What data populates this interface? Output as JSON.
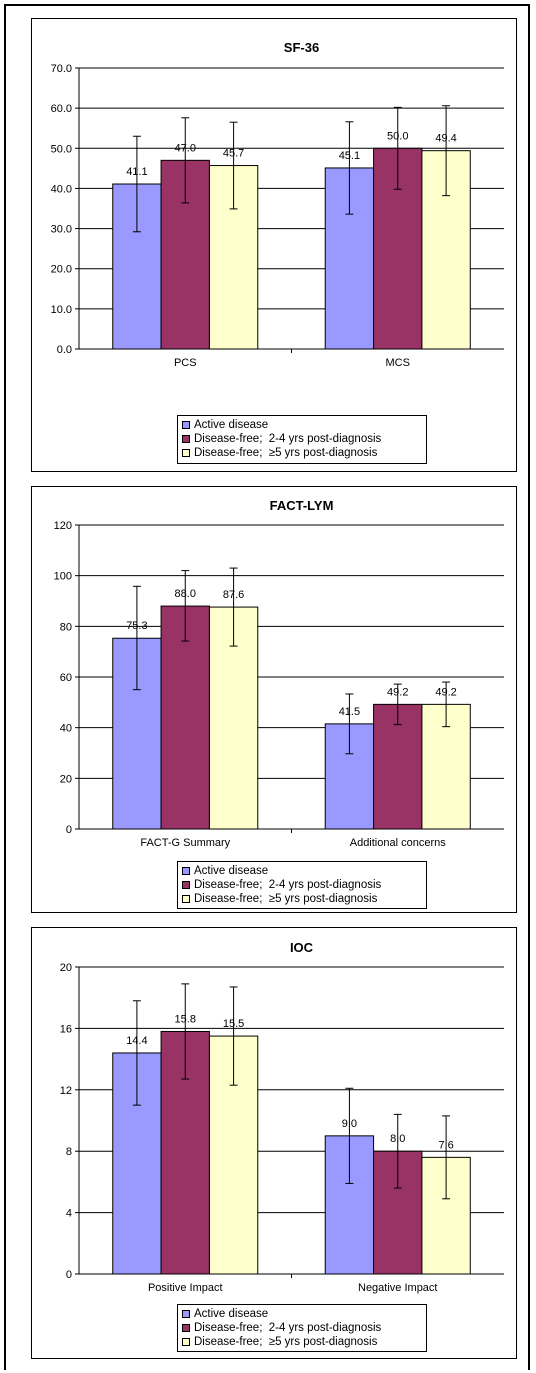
{
  "colors": {
    "active": "#9999ff",
    "free24": "#993366",
    "free5": "#ffffcc"
  },
  "legend": [
    {
      "label": "Active disease",
      "color": "#9999ff"
    },
    {
      "label": "Disease-free;  2-4 yrs post-diagnosis",
      "color": "#993366"
    },
    {
      "label": "Disease-free;  ≥5 yrs post-diagnosis",
      "color": "#ffffcc"
    }
  ],
  "chart_data": [
    {
      "type": "bar",
      "title": "SF-36",
      "categories": [
        "PCS",
        "MCS"
      ],
      "ylim": [
        0,
        70
      ],
      "yticks": [
        0,
        10,
        20,
        30,
        40,
        50,
        60,
        70
      ],
      "tick_decimals": 1,
      "series": [
        {
          "name": "Active disease",
          "values": [
            41.1,
            45.1
          ],
          "errors_low": [
            29.2,
            33.6
          ],
          "errors_high": [
            53.0,
            56.6
          ],
          "labels": [
            "41.1",
            "45.1"
          ]
        },
        {
          "name": "Disease-free;  2-4 yrs post-diagnosis",
          "values": [
            47.0,
            50.0
          ],
          "errors_low": [
            36.4,
            39.8
          ],
          "errors_high": [
            57.6,
            60.2
          ],
          "labels": [
            "47.0",
            "50.0"
          ]
        },
        {
          "name": "Disease-free;  ≥5 yrs post-diagnosis",
          "values": [
            45.7,
            49.4
          ],
          "errors_low": [
            34.9,
            38.2
          ],
          "errors_high": [
            56.5,
            60.6
          ],
          "labels": [
            "45.7",
            "49.4"
          ]
        }
      ],
      "grid": true,
      "legend_position": "bottom"
    },
    {
      "type": "bar",
      "title": "FACT-LYM",
      "categories": [
        "FACT-G Summary",
        "Additional concerns"
      ],
      "ylim": [
        0,
        120
      ],
      "yticks": [
        0,
        20,
        40,
        60,
        80,
        100,
        120
      ],
      "tick_decimals": 0,
      "series": [
        {
          "name": "Active disease",
          "values": [
            75.3,
            41.5
          ],
          "errors_low": [
            55.0,
            29.7
          ],
          "errors_high": [
            95.8,
            53.3
          ],
          "labels": [
            "75.3",
            "41.5"
          ]
        },
        {
          "name": "Disease-free;  2-4 yrs post-diagnosis",
          "values": [
            88.0,
            49.2
          ],
          "errors_low": [
            74.2,
            41.2
          ],
          "errors_high": [
            102.0,
            57.2
          ],
          "labels": [
            "88.0",
            "49.2"
          ]
        },
        {
          "name": "Disease-free;  ≥5 yrs post-diagnosis",
          "values": [
            87.6,
            49.2
          ],
          "errors_low": [
            72.2,
            40.4
          ],
          "errors_high": [
            103.0,
            58.0
          ],
          "labels": [
            "87.6",
            "49.2"
          ]
        }
      ],
      "grid": true,
      "legend_position": "bottom"
    },
    {
      "type": "bar",
      "title": "IOC",
      "categories": [
        "Positive Impact",
        "Negative Impact"
      ],
      "ylim": [
        0,
        20
      ],
      "yticks": [
        0,
        4,
        8,
        12,
        16,
        20
      ],
      "tick_decimals": 0,
      "series": [
        {
          "name": "Active disease",
          "values": [
            14.4,
            9.0
          ],
          "errors_low": [
            11.0,
            5.9
          ],
          "errors_high": [
            17.8,
            12.1
          ],
          "labels": [
            "14.4",
            "9.0"
          ]
        },
        {
          "name": "Disease-free;  2-4 yrs post-diagnosis",
          "values": [
            15.8,
            8.0
          ],
          "errors_low": [
            12.7,
            5.6
          ],
          "errors_high": [
            18.9,
            10.4
          ],
          "labels": [
            "15.8",
            "8.0"
          ]
        },
        {
          "name": "Disease-free;  ≥5 yrs post-diagnosis",
          "values": [
            15.5,
            7.6
          ],
          "errors_low": [
            12.3,
            4.9
          ],
          "errors_high": [
            18.7,
            10.3
          ],
          "labels": [
            "15.5",
            "7.6"
          ]
        }
      ],
      "grid": true,
      "legend_position": "bottom"
    }
  ]
}
